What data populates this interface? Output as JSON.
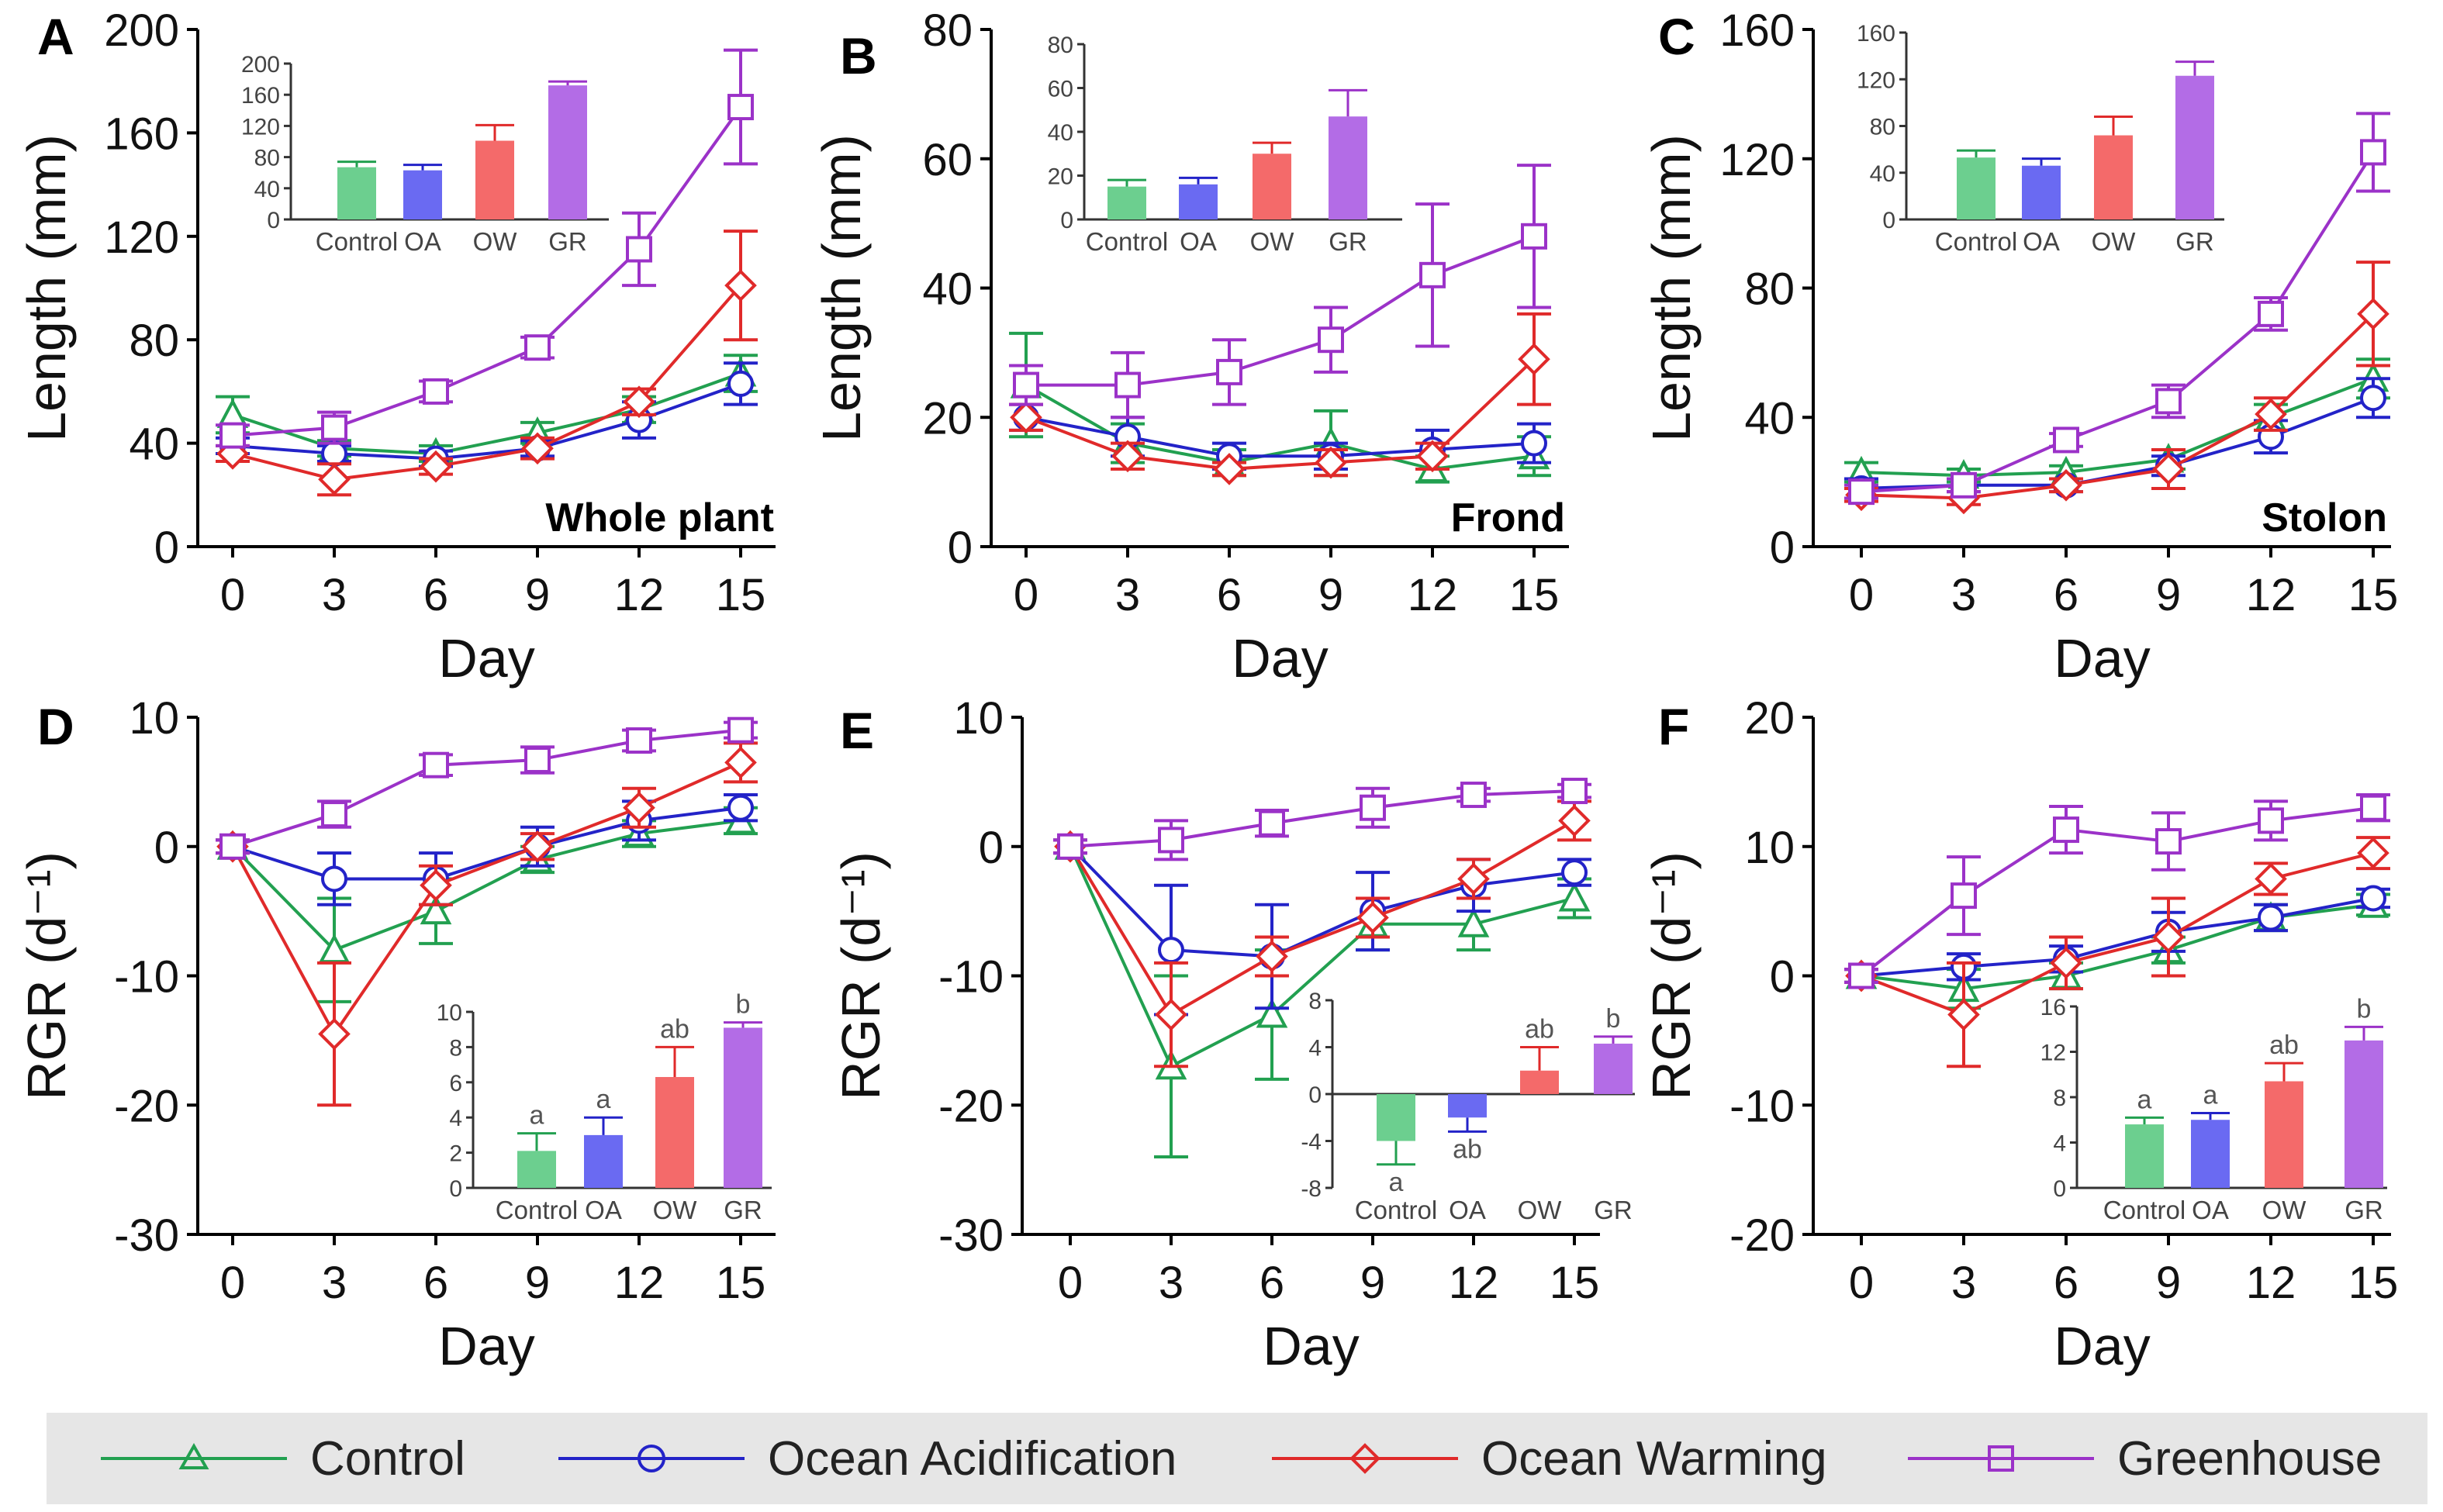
{
  "chart_data": [
    {
      "panel_letter": "A",
      "type": "line",
      "panel_label": "Whole plant",
      "xlabel": "Day",
      "ylabel": "Length (mm)",
      "x": [
        0,
        3,
        6,
        9,
        12,
        15
      ],
      "xticks": [
        "0",
        "3",
        "6",
        "9",
        "12",
        "15"
      ],
      "ylim": [
        0,
        200
      ],
      "yticks": [
        "0",
        "40",
        "80",
        "120",
        "160",
        "200"
      ],
      "series": [
        {
          "name": "Control",
          "values": [
            51,
            38,
            36,
            44,
            53,
            67
          ],
          "errors": [
            7,
            3,
            3,
            4,
            5,
            7
          ]
        },
        {
          "name": "Ocean Acidification",
          "values": [
            39,
            36,
            34,
            38,
            49,
            63
          ],
          "errors": [
            3,
            3,
            3,
            3,
            7,
            8
          ]
        },
        {
          "name": "Ocean Warming",
          "values": [
            36,
            26,
            31,
            38,
            56,
            101
          ],
          "errors": [
            3,
            6,
            3,
            4,
            5,
            21
          ]
        },
        {
          "name": "Greenhouse",
          "values": [
            43,
            46,
            60,
            77,
            115,
            170
          ],
          "errors": [
            4,
            6,
            4,
            4,
            14,
            22
          ]
        }
      ],
      "inset": {
        "categories": [
          "Control",
          "OA",
          "OW",
          "GR"
        ],
        "values": [
          67,
          63,
          101,
          172
        ],
        "errors": [
          7,
          7,
          20,
          5
        ],
        "ylim": [
          0,
          200
        ],
        "yticks": [
          "0",
          "40",
          "80",
          "120",
          "160",
          "200"
        ],
        "letters": []
      }
    },
    {
      "panel_letter": "B",
      "type": "line",
      "panel_label": "Frond",
      "xlabel": "Day",
      "ylabel": "Length (mm)",
      "x": [
        0,
        3,
        6,
        9,
        12,
        15
      ],
      "xticks": [
        "0",
        "3",
        "6",
        "9",
        "12",
        "15"
      ],
      "ylim": [
        0,
        80
      ],
      "yticks": [
        "0",
        "20",
        "40",
        "60",
        "80"
      ],
      "series": [
        {
          "name": "Control",
          "values": [
            25,
            16,
            13,
            16,
            12,
            14
          ],
          "errors": [
            8,
            3,
            2,
            5,
            2,
            3
          ]
        },
        {
          "name": "Ocean Acidification",
          "values": [
            20,
            17,
            14,
            14,
            15,
            16
          ],
          "errors": [
            2,
            3,
            2,
            2,
            3,
            3
          ]
        },
        {
          "name": "Ocean Warming",
          "values": [
            20,
            14,
            12,
            13,
            14,
            29
          ],
          "errors": [
            2,
            2,
            1,
            2,
            2,
            7
          ]
        },
        {
          "name": "Greenhouse",
          "values": [
            25,
            25,
            27,
            32,
            42,
            48
          ],
          "errors": [
            3,
            5,
            5,
            5,
            11,
            11
          ]
        }
      ],
      "inset": {
        "categories": [
          "Control",
          "OA",
          "OW",
          "GR"
        ],
        "values": [
          15,
          16,
          30,
          47
        ],
        "errors": [
          3,
          3,
          5,
          12
        ],
        "ylim": [
          0,
          80
        ],
        "yticks": [
          "0",
          "20",
          "40",
          "60",
          "80"
        ],
        "letters": []
      }
    },
    {
      "panel_letter": "C",
      "type": "line",
      "panel_label": "Stolon",
      "xlabel": "Day",
      "ylabel": "Length (mm)",
      "x": [
        0,
        3,
        6,
        9,
        12,
        15
      ],
      "xticks": [
        "0",
        "3",
        "6",
        "9",
        "12",
        "15"
      ],
      "ylim": [
        0,
        160
      ],
      "yticks": [
        "0",
        "40",
        "80",
        "120",
        "160"
      ],
      "series": [
        {
          "name": "Control",
          "values": [
            23,
            22,
            23,
            27,
            40,
            52
          ],
          "errors": [
            3,
            2,
            2,
            3,
            4,
            6
          ]
        },
        {
          "name": "Ocean Acidification",
          "values": [
            18,
            19,
            19,
            25,
            34,
            46
          ],
          "errors": [
            3,
            2,
            2,
            3,
            5,
            6
          ]
        },
        {
          "name": "Ocean Warming",
          "values": [
            16,
            15,
            19,
            24,
            41,
            72
          ],
          "errors": [
            2,
            2,
            2,
            6,
            5,
            16
          ]
        },
        {
          "name": "Greenhouse",
          "values": [
            17,
            19,
            33,
            45,
            72,
            122
          ],
          "errors": [
            2,
            2,
            2,
            5,
            5,
            12
          ]
        }
      ],
      "inset": {
        "categories": [
          "Control",
          "OA",
          "OW",
          "GR"
        ],
        "values": [
          53,
          46,
          72,
          123
        ],
        "errors": [
          6,
          6,
          16,
          12
        ],
        "ylim": [
          0,
          160
        ],
        "yticks": [
          "0",
          "40",
          "80",
          "120",
          "160"
        ],
        "letters": []
      }
    },
    {
      "panel_letter": "D",
      "type": "line",
      "panel_label": "",
      "xlabel": "Day",
      "ylabel": "RGR (d⁻¹)",
      "x": [
        0,
        3,
        6,
        9,
        12,
        15
      ],
      "xticks": [
        "0",
        "3",
        "6",
        "9",
        "12",
        "15"
      ],
      "ylim": [
        -30,
        10
      ],
      "yticks": [
        "-30",
        "-20",
        "-10",
        "0",
        "10"
      ],
      "series": [
        {
          "name": "Control",
          "values": [
            0,
            -8,
            -5,
            -1,
            1,
            2
          ],
          "errors": [
            0.5,
            4,
            2.5,
            1,
            1,
            1
          ]
        },
        {
          "name": "Ocean Acidification",
          "values": [
            0,
            -2.5,
            -2.5,
            0,
            2,
            3
          ],
          "errors": [
            0.5,
            2,
            2,
            1.5,
            1.5,
            1
          ]
        },
        {
          "name": "Ocean Warming",
          "values": [
            0,
            -14.5,
            -3,
            0,
            3,
            6.5
          ],
          "errors": [
            0.5,
            5.5,
            1.5,
            1,
            1.5,
            1.5
          ]
        },
        {
          "name": "Greenhouse",
          "values": [
            0,
            2.5,
            6.3,
            6.7,
            8.2,
            9
          ],
          "errors": [
            0.5,
            1,
            0.8,
            1,
            0.8,
            0.6
          ]
        }
      ],
      "inset": {
        "categories": [
          "Control",
          "OA",
          "OW",
          "GR"
        ],
        "values": [
          2.1,
          3,
          6.3,
          9.1
        ],
        "errors": [
          1,
          1,
          1.7,
          0.3
        ],
        "ylim": [
          0,
          10
        ],
        "yticks": [
          "0",
          "2",
          "4",
          "6",
          "8",
          "10"
        ],
        "letters": [
          "a",
          "a",
          "ab",
          "b"
        ]
      }
    },
    {
      "panel_letter": "E",
      "type": "line",
      "panel_label": "",
      "xlabel": "Day",
      "ylabel": "RGR (d⁻¹)",
      "x": [
        0,
        3,
        6,
        9,
        12,
        15
      ],
      "xticks": [
        "0",
        "3",
        "6",
        "9",
        "12",
        "15"
      ],
      "ylim": [
        -30,
        10
      ],
      "yticks": [
        "-30",
        "-20",
        "-10",
        "0",
        "10"
      ],
      "series": [
        {
          "name": "Control",
          "values": [
            0,
            -17,
            -13,
            -6,
            -6,
            -4
          ],
          "errors": [
            0.5,
            7,
            5,
            2,
            2,
            1.5
          ]
        },
        {
          "name": "Ocean Acidification",
          "values": [
            0,
            -8,
            -8.5,
            -5,
            -3,
            -2
          ],
          "errors": [
            0.5,
            5,
            4,
            3,
            2,
            1
          ]
        },
        {
          "name": "Ocean Warming",
          "values": [
            0,
            -13,
            -8.5,
            -5.5,
            -2.5,
            2
          ],
          "errors": [
            0.5,
            4,
            1.5,
            1.5,
            1.5,
            1.5
          ]
        },
        {
          "name": "Greenhouse",
          "values": [
            0,
            0.5,
            1.8,
            3,
            4,
            4.3
          ],
          "errors": [
            0.5,
            1.5,
            1,
            1.5,
            0.5,
            0.5
          ]
        }
      ],
      "inset": {
        "categories": [
          "Control",
          "OA",
          "OW",
          "GR"
        ],
        "values": [
          -4,
          -2,
          2,
          4.3
        ],
        "errors": [
          2,
          1.2,
          2,
          0.6
        ],
        "ylim": [
          -8,
          8
        ],
        "yticks": [
          "-8",
          "-4",
          "0",
          "4",
          "8"
        ],
        "letters": [
          "a",
          "ab",
          "ab",
          "b"
        ]
      }
    },
    {
      "panel_letter": "F",
      "type": "line",
      "panel_label": "",
      "xlabel": "Day",
      "ylabel": "RGR (d⁻¹)",
      "x": [
        0,
        3,
        6,
        9,
        12,
        15
      ],
      "xticks": [
        "0",
        "3",
        "6",
        "9",
        "12",
        "15"
      ],
      "ylim": [
        -20,
        20
      ],
      "yticks": [
        "-20",
        "-10",
        "0",
        "10",
        "20"
      ],
      "series": [
        {
          "name": "Control",
          "values": [
            0,
            -1,
            0,
            2,
            4.5,
            5.5
          ],
          "errors": [
            0.5,
            1.5,
            1,
            1,
            1,
            0.8
          ]
        },
        {
          "name": "Ocean Acidification",
          "values": [
            0,
            0.7,
            1.3,
            3.4,
            4.5,
            6
          ],
          "errors": [
            0.5,
            1,
            1,
            1.5,
            1,
            0.7
          ]
        },
        {
          "name": "Ocean Warming",
          "values": [
            0,
            -3,
            1,
            3,
            7.5,
            9.5
          ],
          "errors": [
            0.5,
            4,
            2,
            3,
            1.2,
            1.2
          ]
        },
        {
          "name": "Greenhouse",
          "values": [
            0,
            6.2,
            11.3,
            10.4,
            12,
            13
          ],
          "errors": [
            0.5,
            3,
            1.8,
            2.2,
            1.5,
            1
          ]
        }
      ],
      "inset": {
        "categories": [
          "Control",
          "OA",
          "OW",
          "GR"
        ],
        "values": [
          5.6,
          6,
          9.4,
          13
        ],
        "errors": [
          0.6,
          0.6,
          1.6,
          1.2
        ],
        "ylim": [
          0,
          16
        ],
        "yticks": [
          "0",
          "4",
          "8",
          "12",
          "16"
        ],
        "letters": [
          "a",
          "a",
          "ab",
          "b"
        ]
      }
    }
  ],
  "legend": [
    {
      "name": "Control",
      "marker": "triangle",
      "color": "#22a050"
    },
    {
      "name": "Ocean Acidification",
      "marker": "circle",
      "color": "#2323c8"
    },
    {
      "name": "Ocean Warming",
      "marker": "diamond",
      "color": "#e02a2a"
    },
    {
      "name": "Greenhouse",
      "marker": "square",
      "color": "#9b32c8"
    }
  ],
  "colors": {
    "line": [
      "#22a050",
      "#2323c8",
      "#e02a2a",
      "#9b32c8"
    ],
    "bar": [
      "#6ccf8f",
      "#6a6af2",
      "#f46a6a",
      "#b36ce6"
    ],
    "legend_background": "#e6e6e6"
  }
}
